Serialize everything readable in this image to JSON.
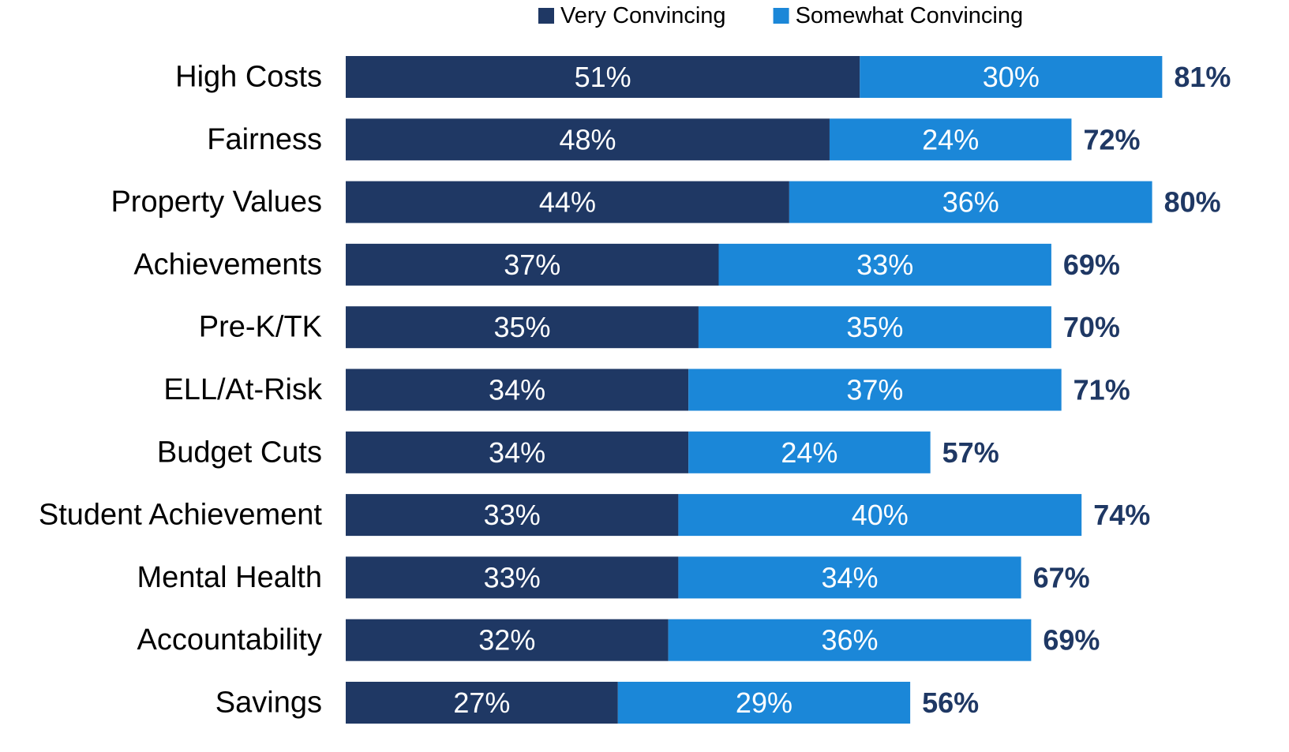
{
  "chart_data": {
    "type": "stacked-barh",
    "categories": [
      "High Costs",
      "Fairness",
      "Property Values",
      "Achievements",
      "Pre-K/TK",
      "ELL/At-Risk",
      "Budget Cuts",
      "Student Achievement",
      "Mental Health",
      "Accountability",
      "Savings"
    ],
    "series": [
      {
        "name": "Very Convincing",
        "color": "#1f3864",
        "values": [
          51,
          48,
          44,
          37,
          35,
          34,
          34,
          33,
          33,
          32,
          27
        ],
        "value_labels": [
          "51%",
          "48%",
          "44%",
          "37%",
          "35%",
          "34%",
          "34%",
          "33%",
          "33%",
          "32%",
          "27%"
        ]
      },
      {
        "name": "Somewhat Convincing",
        "color": "#1b87d8",
        "values": [
          30,
          24,
          36,
          33,
          35,
          37,
          24,
          40,
          34,
          36,
          29
        ],
        "value_labels": [
          "30%",
          "24%",
          "36%",
          "33%",
          "35%",
          "37%",
          "24%",
          "40%",
          "34%",
          "36%",
          "29%"
        ]
      }
    ],
    "totals": [
      81,
      72,
      80,
      69,
      70,
      71,
      57,
      74,
      67,
      69,
      56
    ],
    "total_labels": [
      "81%",
      "72%",
      "80%",
      "69%",
      "70%",
      "71%",
      "57%",
      "74%",
      "67%",
      "69%",
      "56%"
    ],
    "legend": "top"
  }
}
